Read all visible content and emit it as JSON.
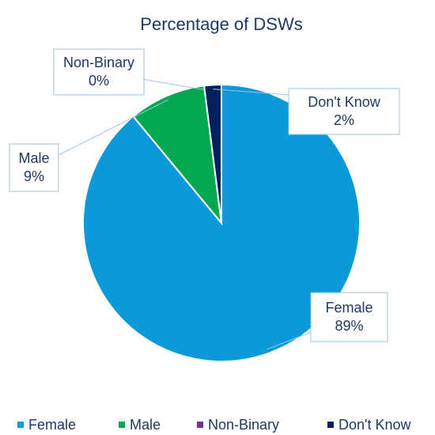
{
  "chart_data": {
    "type": "pie",
    "title": "Percentage of DSWs",
    "categories": [
      "Female",
      "Male",
      "Non-Binary",
      "Don't Know"
    ],
    "values": [
      89,
      9,
      0,
      2
    ],
    "value_labels": [
      "89%",
      "9%",
      "0%",
      "2%"
    ],
    "colors": [
      "#0a9ad9",
      "#00a94f",
      "#7030a0",
      "#002060"
    ],
    "legend": "bottom"
  }
}
